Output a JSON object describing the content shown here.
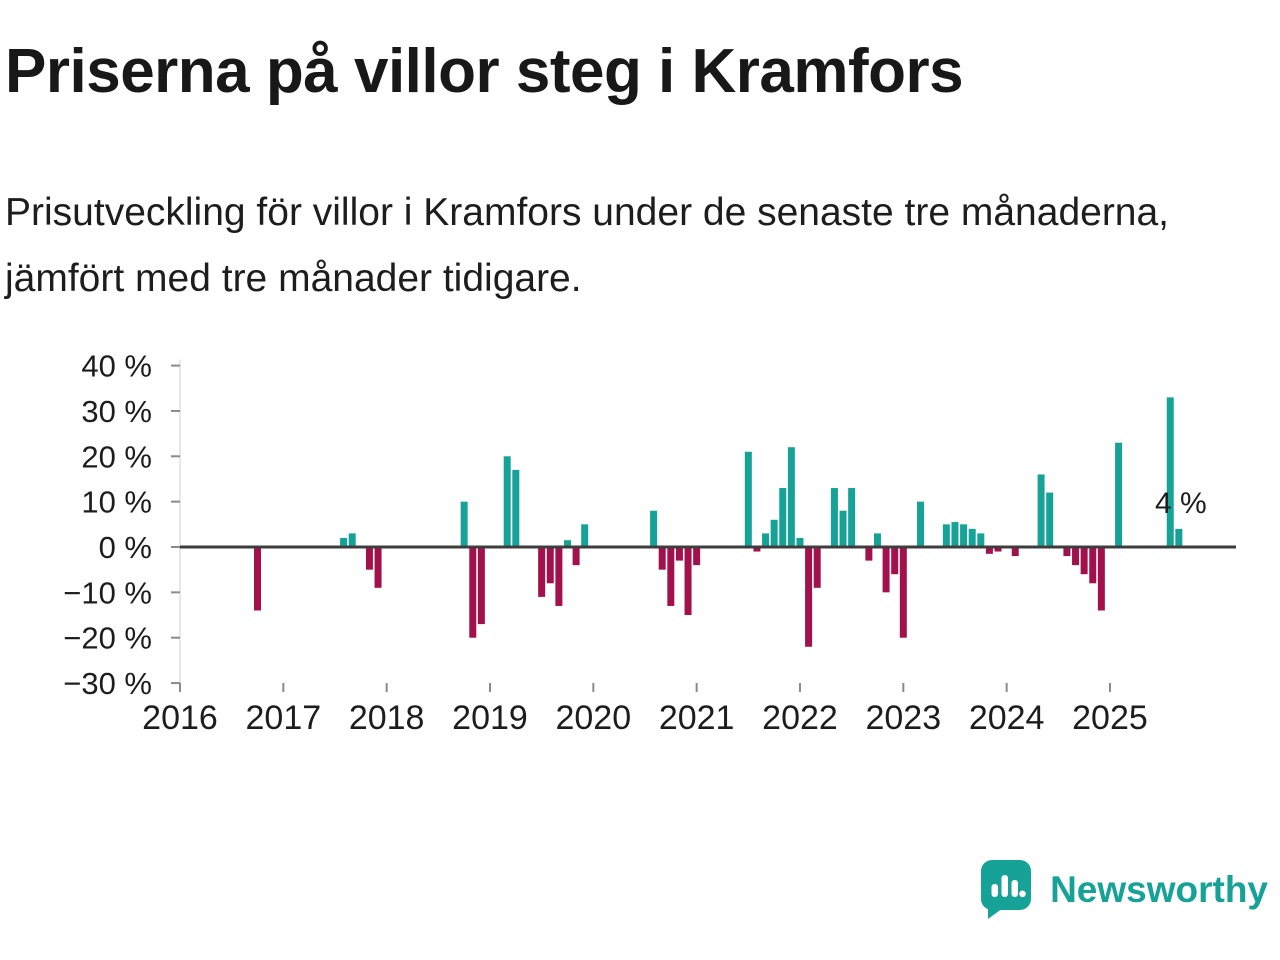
{
  "header": {
    "title": "Priserna på villor steg i Kramfors",
    "subtitle": "Prisutveckling för villor i Kramfors under de senaste tre månaderna, jämfört med tre månader tidigare."
  },
  "chart_data": {
    "type": "bar",
    "unit": "%",
    "ylim": [
      -30,
      40
    ],
    "yticks": [
      {
        "value": 40,
        "label": "40 %"
      },
      {
        "value": 30,
        "label": "30 %"
      },
      {
        "value": 20,
        "label": "20 %"
      },
      {
        "value": 10,
        "label": "10 %"
      },
      {
        "value": 0,
        "label": "0 %"
      },
      {
        "value": -10,
        "label": "−10 %"
      },
      {
        "value": -20,
        "label": "−20 %"
      },
      {
        "value": -30,
        "label": "−30 %"
      }
    ],
    "xticks": [
      {
        "value": 2016,
        "label": "2016"
      },
      {
        "value": 2017,
        "label": "2017"
      },
      {
        "value": 2018,
        "label": "2018"
      },
      {
        "value": 2019,
        "label": "2019"
      },
      {
        "value": 2020,
        "label": "2020"
      },
      {
        "value": 2021,
        "label": "2021"
      },
      {
        "value": 2022,
        "label": "2022"
      },
      {
        "value": 2023,
        "label": "2023"
      },
      {
        "value": 2024,
        "label": "2024"
      },
      {
        "value": 2025,
        "label": "2025"
      }
    ],
    "bars": [
      {
        "t": "2016-10",
        "v": -14
      },
      {
        "t": "2017-08",
        "v": 2
      },
      {
        "t": "2017-09",
        "v": 3
      },
      {
        "t": "2017-11",
        "v": -5
      },
      {
        "t": "2017-12",
        "v": -9
      },
      {
        "t": "2018-10",
        "v": 10
      },
      {
        "t": "2018-11",
        "v": -20
      },
      {
        "t": "2018-12",
        "v": -17
      },
      {
        "t": "2019-03",
        "v": 20
      },
      {
        "t": "2019-04",
        "v": 17
      },
      {
        "t": "2019-07",
        "v": -11
      },
      {
        "t": "2019-08",
        "v": -8
      },
      {
        "t": "2019-09",
        "v": -13
      },
      {
        "t": "2019-10",
        "v": 1.5
      },
      {
        "t": "2019-11",
        "v": -4
      },
      {
        "t": "2019-12",
        "v": 5
      },
      {
        "t": "2020-08",
        "v": 8
      },
      {
        "t": "2020-09",
        "v": -5
      },
      {
        "t": "2020-10",
        "v": -13
      },
      {
        "t": "2020-11",
        "v": -3
      },
      {
        "t": "2020-12",
        "v": -15
      },
      {
        "t": "2021-01",
        "v": -4
      },
      {
        "t": "2021-07",
        "v": 21
      },
      {
        "t": "2021-08",
        "v": -1
      },
      {
        "t": "2021-09",
        "v": 3
      },
      {
        "t": "2021-10",
        "v": 6
      },
      {
        "t": "2021-11",
        "v": 13
      },
      {
        "t": "2021-12",
        "v": 22
      },
      {
        "t": "2022-01",
        "v": 2
      },
      {
        "t": "2022-02",
        "v": -22
      },
      {
        "t": "2022-03",
        "v": -9
      },
      {
        "t": "2022-05",
        "v": 13
      },
      {
        "t": "2022-06",
        "v": 8
      },
      {
        "t": "2022-07",
        "v": 13
      },
      {
        "t": "2022-09",
        "v": -3
      },
      {
        "t": "2022-10",
        "v": 3
      },
      {
        "t": "2022-11",
        "v": -10
      },
      {
        "t": "2022-12",
        "v": -6
      },
      {
        "t": "2023-01",
        "v": -20
      },
      {
        "t": "2023-03",
        "v": 10
      },
      {
        "t": "2023-06",
        "v": 5
      },
      {
        "t": "2023-07",
        "v": 5.5
      },
      {
        "t": "2023-08",
        "v": 5
      },
      {
        "t": "2023-09",
        "v": 4
      },
      {
        "t": "2023-10",
        "v": 3
      },
      {
        "t": "2023-11",
        "v": -1.5
      },
      {
        "t": "2023-12",
        "v": -1
      },
      {
        "t": "2024-02",
        "v": -2
      },
      {
        "t": "2024-05",
        "v": 16
      },
      {
        "t": "2024-06",
        "v": 12
      },
      {
        "t": "2024-08",
        "v": -2
      },
      {
        "t": "2024-09",
        "v": -4
      },
      {
        "t": "2024-10",
        "v": -6
      },
      {
        "t": "2024-11",
        "v": -8
      },
      {
        "t": "2024-12",
        "v": -14
      },
      {
        "t": "2025-02",
        "v": 23
      },
      {
        "t": "2025-08",
        "v": 33
      },
      {
        "t": "2025-09",
        "v": 4
      }
    ],
    "annotation": {
      "text": "4 %",
      "t": "2025-09",
      "v": 4
    },
    "colors": {
      "positive": "#16a296",
      "negative": "#a3114d",
      "zero_line": "#3d3d3d",
      "tick": "#8a8a8a",
      "axis": "#cfcfcf"
    },
    "title": "Priserna på villor steg i Kramfors",
    "xlabel": "",
    "ylabel": ""
  },
  "footer": {
    "brand": "Newsworthy",
    "brand_color": "#16a296"
  }
}
